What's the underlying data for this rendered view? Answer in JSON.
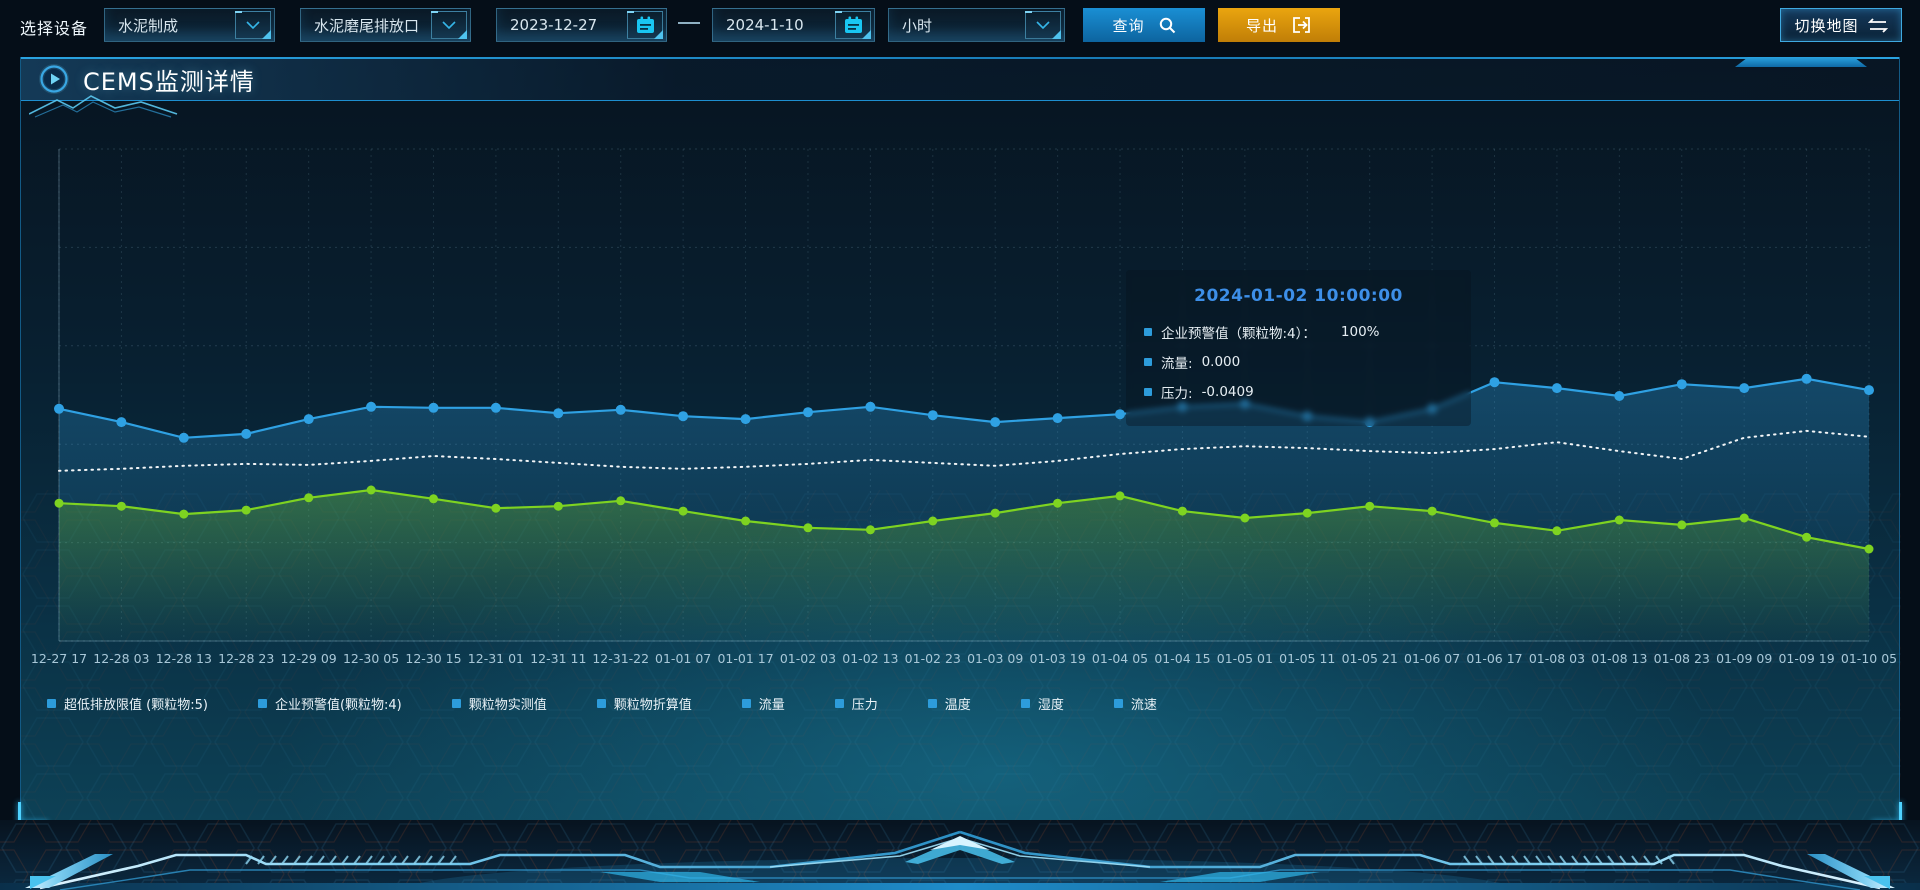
{
  "toolbar": {
    "label": "选择设备",
    "device_select": {
      "value": "水泥制成"
    },
    "outlet_select": {
      "value": "水泥磨尾排放口"
    },
    "date_start": "2023-12-27",
    "date_separator": "—",
    "date_end": "2024-1-10",
    "interval_select": {
      "value": "小时"
    },
    "query_label": "查询",
    "export_label": "导出",
    "switch_map_label": "切换地图"
  },
  "panel": {
    "title": "CEMS监测详情"
  },
  "tooltip": {
    "title": "2024-01-02 10:00:00",
    "items": [
      {
        "label": "企业预警值（颗粒物:4）：",
        "value": "100%"
      },
      {
        "label": "流量:",
        "value": "0.000"
      },
      {
        "label": "压力:",
        "value": "-0.0409"
      }
    ]
  },
  "legend": [
    "超低排放限值 (颗粒物:5)",
    "企业预警值(颗粒物:4)",
    "颗粒物实测值",
    "颗粒物折算值",
    "流量",
    "压力",
    "温度",
    "湿度",
    "流速"
  ],
  "colors": {
    "accent": "#2aa0e0",
    "blue_line": "#2fa1e3",
    "green_line": "#7ed321",
    "white_dotted": "#ffffff",
    "export_orange": "#d9950f",
    "tooltip_title": "#3d8fe8",
    "legend_marker": "#2d9cdb"
  },
  "chart_data": {
    "type": "line",
    "title": "",
    "xlabel": "",
    "ylabel": "",
    "y_axis_labels_visible": false,
    "grid": true,
    "legend_position": "bottom",
    "ylim": [
      0,
      100
    ],
    "x_labels": [
      "12-27 17",
      "12-28 03",
      "12-28 13",
      "12-28 23",
      "12-29 09",
      "12-30 05",
      "12-30 15",
      "12-31 01",
      "12-31 11",
      "12-31-22",
      "01-01 07",
      "01-01 17",
      "01-02 03",
      "01-02 13",
      "01-02 23",
      "01-03 09",
      "01-03 19",
      "01-04 05",
      "01-04 15",
      "01-05 01",
      "01-05 11",
      "01-05 21",
      "01-06 07",
      "01-06 17",
      "01-08 03",
      "01-08 13",
      "01-08 23",
      "01-09 09",
      "01-09 19",
      "01-10 05"
    ],
    "series": [
      {
        "name": "series-blue",
        "color": "#2fa1e3",
        "style": "solid-dots",
        "area": true,
        "values": [
          47.2,
          44.5,
          41.3,
          42.1,
          45.1,
          47.6,
          47.4,
          47.4,
          46.3,
          47.0,
          45.7,
          45.1,
          46.5,
          47.6,
          45.9,
          44.5,
          45.3,
          46.1,
          47.6,
          48.2,
          45.7,
          44.5,
          47.2,
          52.6,
          51.4,
          49.8,
          52.2,
          51.4,
          53.3,
          51.0
        ]
      },
      {
        "name": "series-white-dotted",
        "color": "#ffffff",
        "style": "dotted",
        "area": false,
        "values": [
          34.6,
          35.0,
          35.6,
          36.0,
          35.8,
          36.6,
          37.6,
          37.0,
          36.2,
          35.4,
          35.0,
          35.4,
          36.0,
          36.8,
          36.2,
          35.6,
          36.6,
          38.0,
          39.0,
          39.6,
          39.2,
          38.6,
          38.2,
          39.0,
          40.4,
          38.6,
          37.0,
          41.3,
          42.7,
          41.5
        ]
      },
      {
        "name": "series-green",
        "color": "#7ed321",
        "style": "solid-dots",
        "area": true,
        "values": [
          28.0,
          27.4,
          25.8,
          26.6,
          29.1,
          30.7,
          28.9,
          27.0,
          27.4,
          28.5,
          26.4,
          24.4,
          23.0,
          22.6,
          24.4,
          26.0,
          28.0,
          29.5,
          26.4,
          25.0,
          26.0,
          27.4,
          26.4,
          24.0,
          22.4,
          24.6,
          23.6,
          25.0,
          21.1,
          18.7
        ]
      }
    ]
  }
}
